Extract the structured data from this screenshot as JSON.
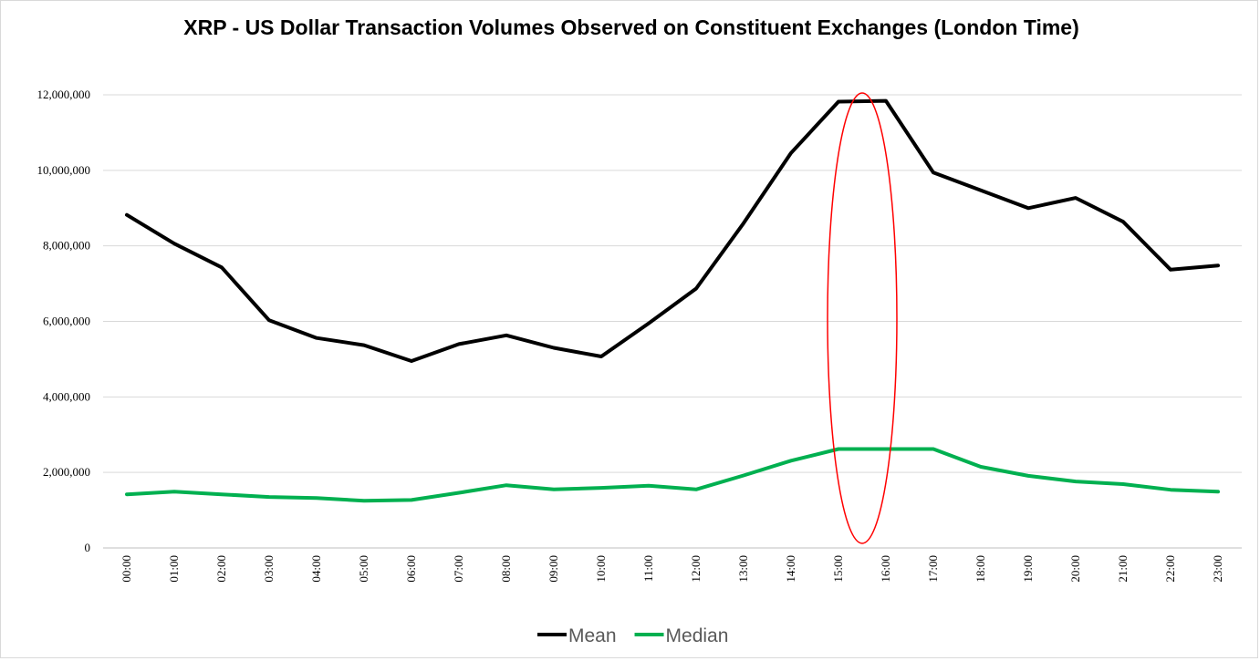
{
  "chart_data": {
    "type": "line",
    "title": "XRP - US Dollar Transaction Volumes Observed on Constituent Exchanges (London Time)",
    "xlabel": "",
    "ylabel": "",
    "categories": [
      "00:00",
      "01:00",
      "02:00",
      "03:00",
      "04:00",
      "05:00",
      "06:00",
      "07:00",
      "08:00",
      "09:00",
      "10:00",
      "11:00",
      "12:00",
      "13:00",
      "14:00",
      "15:00",
      "16:00",
      "17:00",
      "18:00",
      "19:00",
      "20:00",
      "21:00",
      "22:00",
      "23:00"
    ],
    "ylim": [
      0,
      12000000
    ],
    "yticks": [
      0,
      2000000,
      4000000,
      6000000,
      8000000,
      10000000,
      12000000
    ],
    "ytick_labels": [
      "0",
      "2,000,000",
      "4,000,000",
      "6,000,000",
      "8,000,000",
      "10,000,000",
      "12,000,000"
    ],
    "grid": true,
    "legend_position": "bottom",
    "series": [
      {
        "name": "Mean",
        "color": "#000000",
        "values": [
          8820000,
          8060000,
          7430000,
          6030000,
          5560000,
          5370000,
          4950000,
          5400000,
          5630000,
          5300000,
          5070000,
          5950000,
          6870000,
          8600000,
          10460000,
          11820000,
          11840000,
          9940000,
          9470000,
          9000000,
          9270000,
          8640000,
          7370000,
          7480000
        ]
      },
      {
        "name": "Median",
        "color": "#00b050",
        "values": [
          1420000,
          1490000,
          1420000,
          1350000,
          1320000,
          1250000,
          1270000,
          1460000,
          1660000,
          1550000,
          1590000,
          1650000,
          1550000,
          1920000,
          2310000,
          2620000,
          2620000,
          2620000,
          2150000,
          1910000,
          1760000,
          1690000,
          1540000,
          1490000
        ]
      }
    ],
    "annotations": [
      {
        "type": "ellipse",
        "color": "#ff0000",
        "around_categories": [
          "15:00",
          "16:00"
        ]
      }
    ]
  }
}
